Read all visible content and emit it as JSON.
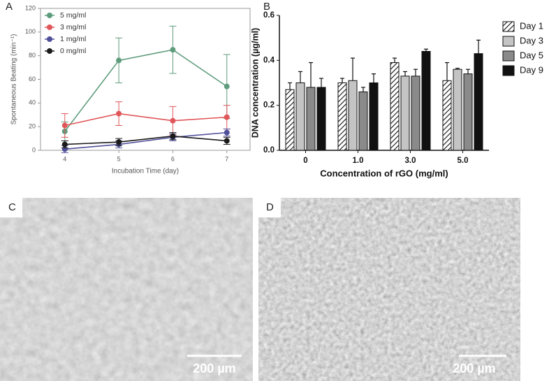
{
  "chart_data": [
    {
      "type": "line",
      "panel_label": "A",
      "xlabel": "Incubation Time (day)",
      "ylabel": "Spontaneous Beating (min⁻¹)",
      "x": [
        4,
        5,
        6,
        7
      ],
      "xlim": [
        3.55,
        7.43
      ],
      "xticks": [
        4,
        5,
        6,
        7
      ],
      "ylim": [
        0,
        120
      ],
      "yticks": [
        0,
        20,
        40,
        60,
        80,
        100,
        120
      ],
      "frame": true,
      "legend": "upper left",
      "series": [
        {
          "name": "5 mg/ml",
          "color": "#5f9c7c",
          "values": [
            16,
            76,
            85,
            54
          ],
          "errors": [
            8,
            19,
            20,
            27
          ]
        },
        {
          "name": "3 mg/ml",
          "color": "#e0575a",
          "values": [
            21,
            31,
            25,
            28
          ],
          "errors": [
            10,
            10,
            12,
            10
          ]
        },
        {
          "name": "1 mg/ml",
          "color": "#4f4f9a",
          "values": [
            1,
            5,
            11,
            15
          ],
          "errors": [
            3,
            3,
            3,
            3
          ]
        },
        {
          "name": "0 mg/ml",
          "color": "#1a1a1a",
          "values": [
            5,
            7,
            12,
            8
          ],
          "errors": [
            3,
            3,
            3,
            3
          ]
        }
      ]
    },
    {
      "type": "bar",
      "panel_label": "B",
      "xlabel": "Concentration of rGO (mg/ml)",
      "ylabel": "DNA concentration (µg/ml)",
      "categories": [
        "0",
        "1.0",
        "3.0",
        "5.0"
      ],
      "ylim": [
        0,
        0.6
      ],
      "yticks": [
        {
          "value": 0,
          "label": "0.0"
        },
        0.2,
        0.4,
        0.6
      ],
      "frame": false,
      "legend": "right",
      "series": [
        {
          "name": "Day 1",
          "color": "#ffffff",
          "hatch": true,
          "values": [
            0.27,
            0.3,
            0.39,
            0.31
          ],
          "errors": [
            0.03,
            0.02,
            0.02,
            0.08
          ]
        },
        {
          "name": "Day 3",
          "color": "#c4c4c4",
          "hatch": false,
          "values": [
            0.3,
            0.31,
            0.33,
            0.36
          ],
          "errors": [
            0.05,
            0.1,
            0.02,
            0.005
          ]
        },
        {
          "name": "Day 5",
          "color": "#8a8a8a",
          "hatch": false,
          "values": [
            0.28,
            0.26,
            0.33,
            0.34
          ],
          "errors": [
            0.11,
            0.02,
            0.03,
            0.02
          ]
        },
        {
          "name": "Day 9",
          "color": "#111111",
          "hatch": false,
          "values": [
            0.28,
            0.3,
            0.44,
            0.43
          ],
          "errors": [
            0.04,
            0.04,
            0.01,
            0.06
          ]
        }
      ]
    }
  ],
  "images": [
    {
      "label": "C",
      "scale_bar": "200 µm"
    },
    {
      "label": "D",
      "scale_bar": "200 µm"
    }
  ]
}
